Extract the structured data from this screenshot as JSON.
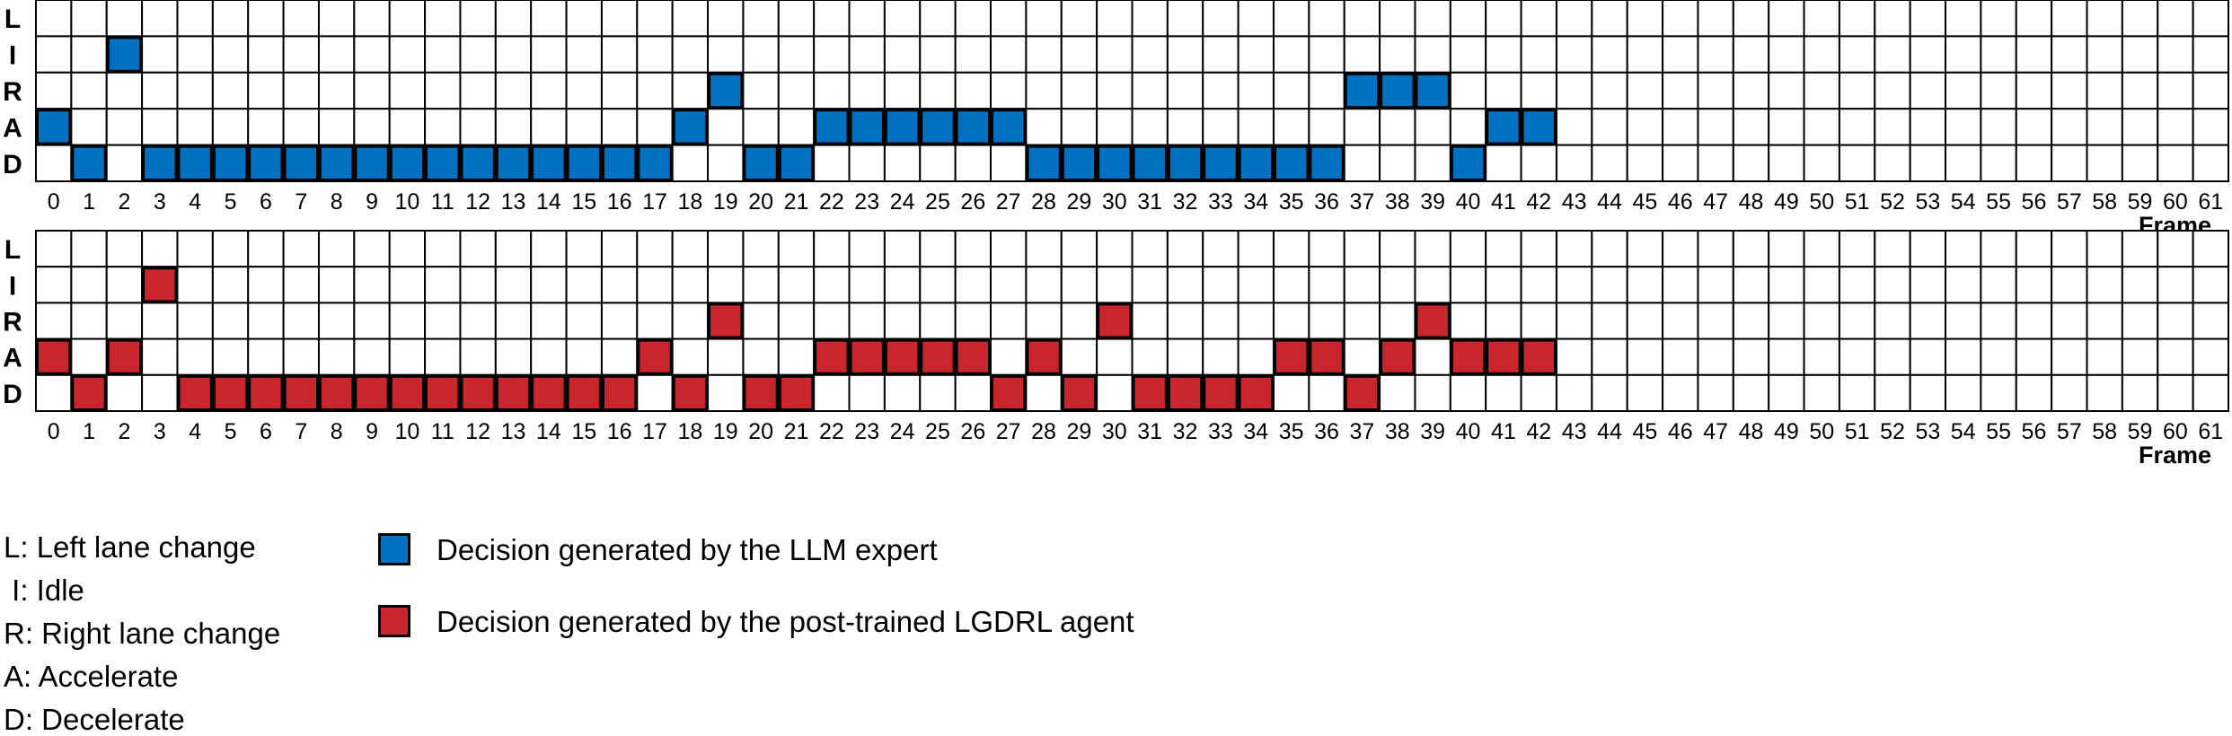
{
  "chart_data": [
    {
      "type": "heatmap",
      "rows": [
        "L",
        "I",
        "R",
        "A",
        "D"
      ],
      "x": [
        0,
        1,
        2,
        3,
        4,
        5,
        6,
        7,
        8,
        9,
        10,
        11,
        12,
        13,
        14,
        15,
        16,
        17,
        18,
        19,
        20,
        21,
        22,
        23,
        24,
        25,
        26,
        27,
        28,
        29,
        30,
        31,
        32,
        33,
        34,
        35,
        36,
        37,
        38,
        39,
        40,
        41,
        42,
        43,
        44,
        45,
        46,
        47,
        48,
        49,
        50,
        51,
        52,
        53,
        54,
        55,
        56,
        57,
        58,
        59,
        60,
        61
      ],
      "xlabel": "Frame",
      "series_name": "Decision generated by the LLM expert",
      "color": "#0070C0",
      "decisions": [
        "A",
        "D",
        "I",
        "D",
        "D",
        "D",
        "D",
        "D",
        "D",
        "D",
        "D",
        "D",
        "D",
        "D",
        "D",
        "D",
        "D",
        "D",
        "A",
        "R",
        "D",
        "D",
        "A",
        "A",
        "A",
        "A",
        "A",
        "A",
        "D",
        "D",
        "D",
        "D",
        "D",
        "D",
        "D",
        "D",
        "D",
        "R",
        "R",
        "R",
        "D",
        "A",
        "A"
      ]
    },
    {
      "type": "heatmap",
      "rows": [
        "L",
        "I",
        "R",
        "A",
        "D"
      ],
      "x": [
        0,
        1,
        2,
        3,
        4,
        5,
        6,
        7,
        8,
        9,
        10,
        11,
        12,
        13,
        14,
        15,
        16,
        17,
        18,
        19,
        20,
        21,
        22,
        23,
        24,
        25,
        26,
        27,
        28,
        29,
        30,
        31,
        32,
        33,
        34,
        35,
        36,
        37,
        38,
        39,
        40,
        41,
        42,
        43,
        44,
        45,
        46,
        47,
        48,
        49,
        50,
        51,
        52,
        53,
        54,
        55,
        56,
        57,
        58,
        59,
        60,
        61
      ],
      "xlabel": "Frame",
      "series_name": "Decision generated by the post-trained LGDRL agent",
      "color": "#C9252C",
      "decisions": [
        "A",
        "D",
        "A",
        "I",
        "D",
        "D",
        "D",
        "D",
        "D",
        "D",
        "D",
        "D",
        "D",
        "D",
        "D",
        "D",
        "D",
        "A",
        "D",
        "R",
        "D",
        "D",
        "A",
        "A",
        "A",
        "A",
        "A",
        "D",
        "A",
        "D",
        "R",
        "D",
        "D",
        "D",
        "D",
        "A",
        "A",
        "D",
        "A",
        "R",
        "A",
        "A",
        "A"
      ]
    }
  ],
  "abbreviations": [
    "L: Left lane change",
    " I: Idle",
    "R: Right lane change",
    "A: Accelerate",
    "D: Decelerate"
  ],
  "legend": [
    {
      "label": "Decision generated by the LLM expert",
      "color": "#0070C0"
    },
    {
      "label": "Decision generated by the post-trained LGDRL agent",
      "color": "#C9252C"
    }
  ]
}
